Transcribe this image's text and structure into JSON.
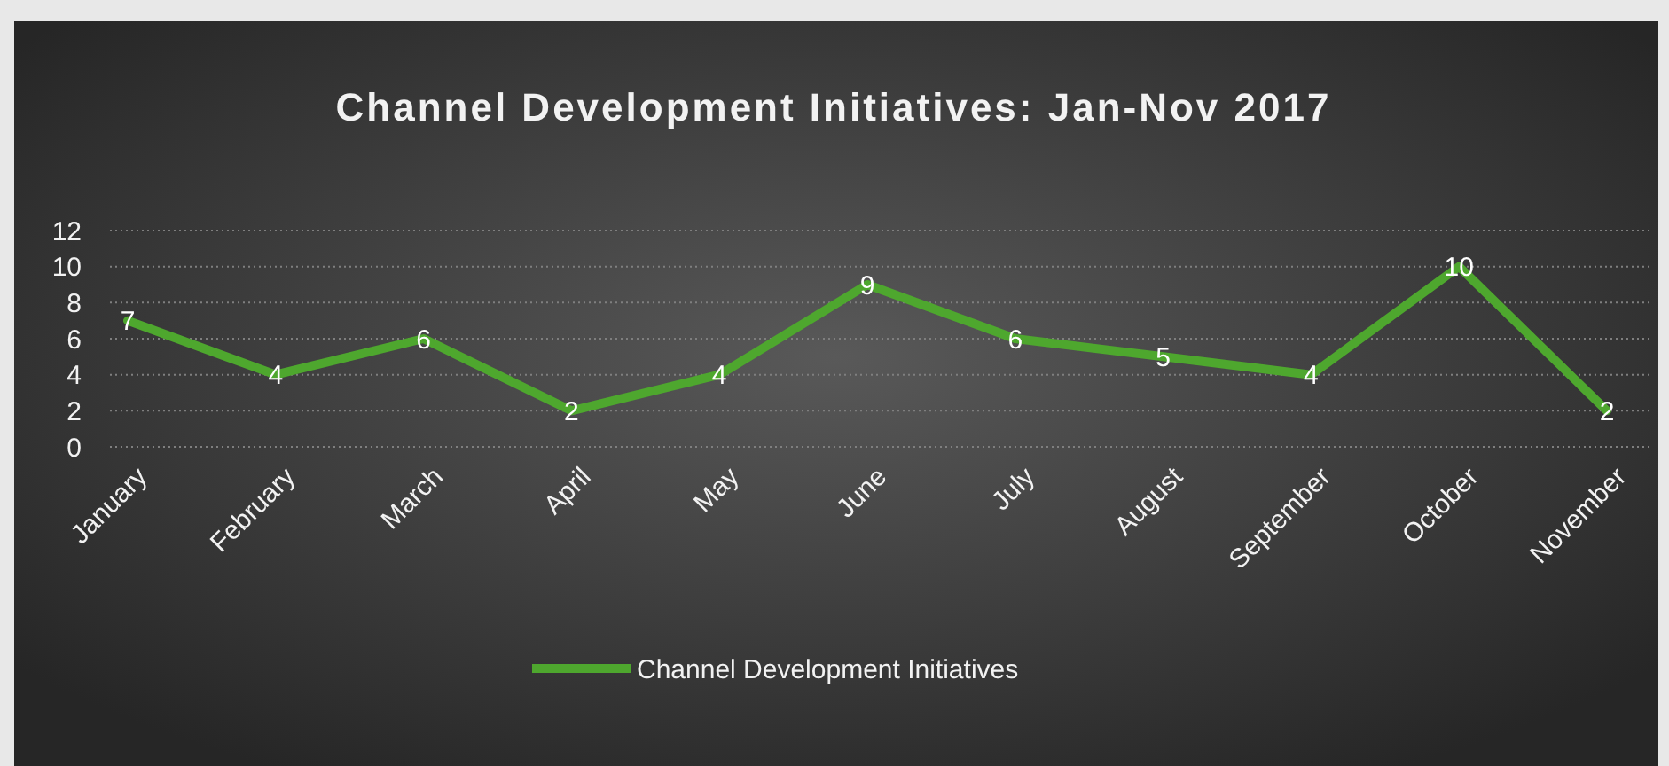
{
  "chart_data": {
    "type": "line",
    "title": "Channel Development Initiatives: Jan-Nov 2017",
    "categories": [
      "January",
      "February",
      "March",
      "April",
      "May",
      "June",
      "July",
      "August",
      "September",
      "October",
      "November"
    ],
    "series": [
      {
        "name": "Channel Development Initiatives",
        "color": "#4ea72e",
        "values": [
          7,
          4,
          6,
          2,
          4,
          9,
          6,
          5,
          4,
          10,
          2
        ]
      }
    ],
    "ylim": [
      0,
      12
    ],
    "yticks": [
      0,
      2,
      4,
      6,
      8,
      10,
      12
    ],
    "grid": "y",
    "legend": "bottom",
    "data_labels": true,
    "marker": "none"
  }
}
